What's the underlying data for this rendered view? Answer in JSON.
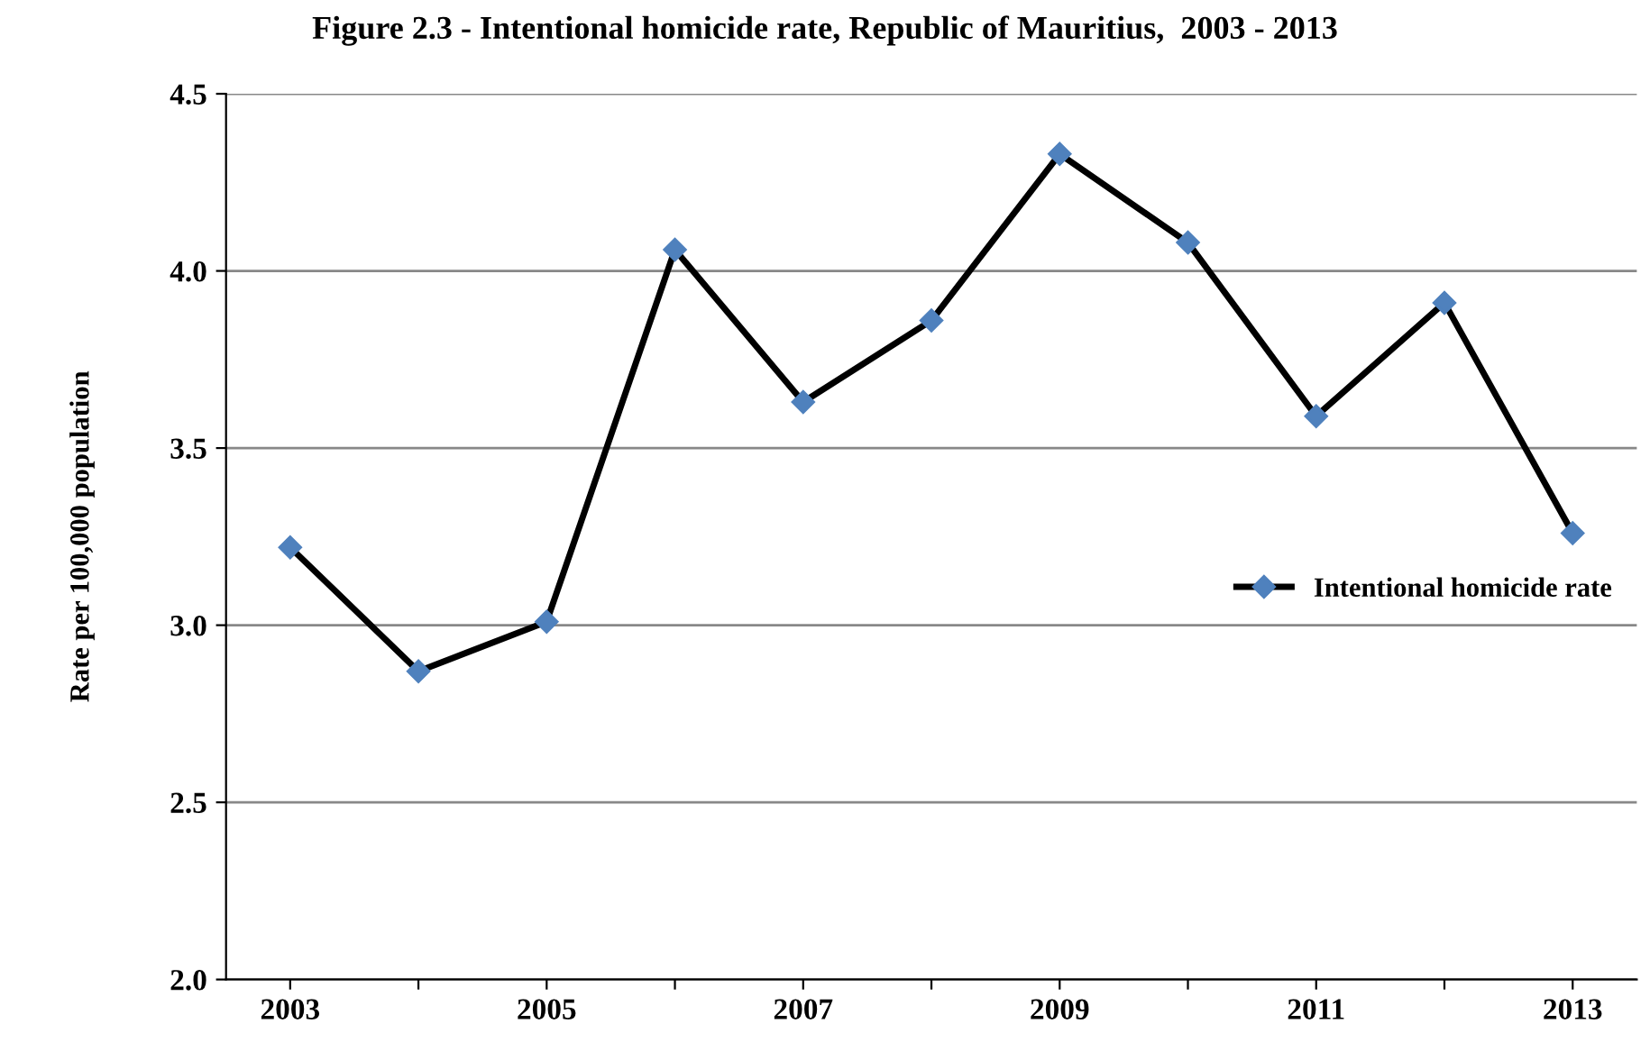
{
  "chart_data": {
    "type": "line",
    "title": "Figure 2.3 - Intentional homicide rate, Republic of Mauritius,  2003 - 2013",
    "ylabel": "Rate per 100,000 population",
    "categories": [
      "2003",
      null,
      "2005",
      null,
      "2007",
      null,
      "2009",
      null,
      "2011",
      null,
      "2013"
    ],
    "series": [
      {
        "name": "Intentional homicide rate",
        "color": "#000000",
        "values": [
          3.22,
          2.87,
          3.01,
          4.06,
          3.63,
          3.86,
          4.33,
          4.08,
          3.59,
          3.91,
          3.26
        ]
      }
    ],
    "ylim": [
      2.0,
      4.5
    ],
    "yticks": [
      {
        "value": 2.0,
        "label": "2.0"
      },
      {
        "value": 2.5,
        "label": "2.5"
      },
      {
        "value": 3.0,
        "label": "3.0"
      },
      {
        "value": 3.5,
        "label": "3.5"
      },
      {
        "value": 4.0,
        "label": "4.0"
      },
      {
        "value": 4.5,
        "label": "4.5"
      }
    ],
    "grid": "y",
    "legend": "right",
    "marker": "diamond",
    "line_style": "solid"
  }
}
